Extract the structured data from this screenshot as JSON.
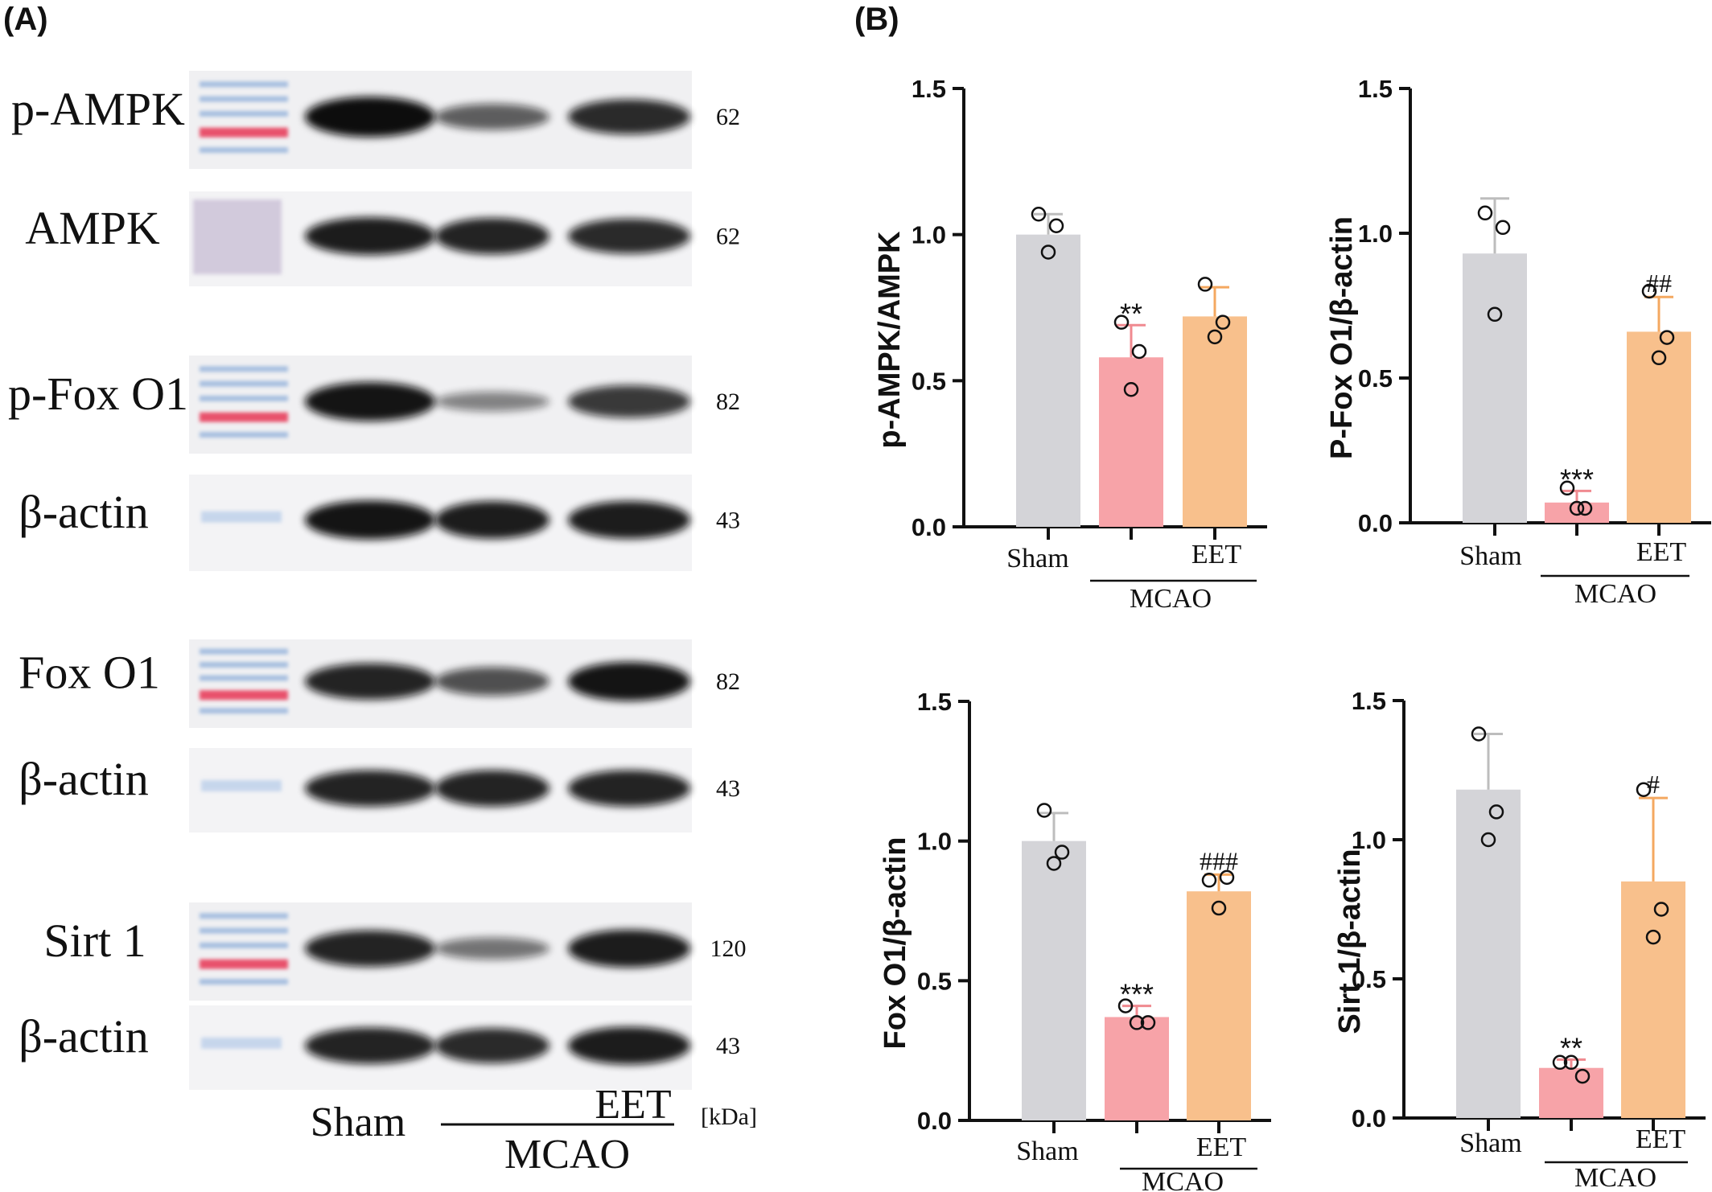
{
  "panel_labels": {
    "a": "(A)",
    "b": "(B)"
  },
  "blot": {
    "rows": [
      {
        "protein": "p-AMPK",
        "kda": "62",
        "bands": [
          1.0,
          0.45,
          0.8
        ]
      },
      {
        "protein": "AMPK",
        "kda": "62",
        "bands": [
          0.9,
          0.85,
          0.8
        ]
      },
      {
        "protein": "p-Fox O1",
        "kda": "82",
        "bands": [
          0.95,
          0.2,
          0.7
        ]
      },
      {
        "protein": "β-actin",
        "kda": "43",
        "bands": [
          0.95,
          0.9,
          0.9
        ]
      },
      {
        "protein": "Fox O1",
        "kda": "82",
        "bands": [
          0.85,
          0.55,
          0.95
        ]
      },
      {
        "protein": "β-actin",
        "kda": "43",
        "bands": [
          0.85,
          0.85,
          0.85
        ]
      },
      {
        "protein": "Sirt 1",
        "kda": "120",
        "bands": [
          0.85,
          0.3,
          0.9
        ]
      },
      {
        "protein": "β-actin",
        "kda": "43",
        "bands": [
          0.85,
          0.8,
          0.9
        ]
      }
    ],
    "x_sham": "Sham",
    "x_eet": "EET",
    "x_mcao": "MCAO",
    "kda_unit": "[kDa]"
  },
  "chart_data": [
    {
      "type": "bar",
      "ylabel": "p-AMPK/AMPK",
      "ylim": [
        0,
        1.5
      ],
      "yticks": [
        "0.0",
        "0.5",
        "1.0",
        "1.5"
      ],
      "categories": [
        "Sham",
        "MCAO",
        "EET"
      ],
      "values": [
        1.0,
        0.58,
        0.72
      ],
      "errors": [
        0.07,
        0.11,
        0.1
      ],
      "points": [
        [
          1.07,
          1.03,
          0.94
        ],
        [
          0.7,
          0.6,
          0.47
        ],
        [
          0.83,
          0.7,
          0.65
        ]
      ],
      "annotations": [
        "",
        "**",
        ""
      ],
      "group_labels": {
        "sham": "Sham",
        "eet": "EET",
        "mcao": "MCAO"
      }
    },
    {
      "type": "bar",
      "ylabel": "P-Fox O1/β-actin",
      "ylim": [
        0,
        1.5
      ],
      "yticks": [
        "0.0",
        "0.5",
        "1.0",
        "1.5"
      ],
      "categories": [
        "Sham",
        "MCAO",
        "EET"
      ],
      "values": [
        0.93,
        0.07,
        0.66
      ],
      "errors": [
        0.19,
        0.04,
        0.12
      ],
      "points": [
        [
          1.07,
          1.02,
          0.72
        ],
        [
          0.12,
          0.05,
          0.05
        ],
        [
          0.8,
          0.64,
          0.57
        ]
      ],
      "annotations": [
        "",
        "***",
        "##"
      ],
      "group_labels": {
        "sham": "Sham",
        "eet": "EET",
        "mcao": "MCAO"
      }
    },
    {
      "type": "bar",
      "ylabel": "Fox O1/β-actin",
      "ylim": [
        0,
        1.5
      ],
      "yticks": [
        "0.0",
        "0.5",
        "1.0",
        "1.5"
      ],
      "categories": [
        "Sham",
        "MCAO",
        "EET"
      ],
      "values": [
        1.0,
        0.37,
        0.82
      ],
      "errors": [
        0.1,
        0.04,
        0.06
      ],
      "points": [
        [
          1.11,
          0.96,
          0.92
        ],
        [
          0.41,
          0.35,
          0.35
        ],
        [
          0.86,
          0.87,
          0.76
        ]
      ],
      "annotations": [
        "",
        "***",
        "###"
      ],
      "group_labels": {
        "sham": "Sham",
        "eet": "EET",
        "mcao": "MCAO"
      }
    },
    {
      "type": "bar",
      "ylabel": "Sirt 1/β-actin",
      "ylim": [
        0,
        1.5
      ],
      "yticks": [
        "0.0",
        "0.5",
        "1.0",
        "1.5"
      ],
      "categories": [
        "Sham",
        "MCAO",
        "EET"
      ],
      "values": [
        1.18,
        0.18,
        0.85
      ],
      "errors": [
        0.2,
        0.03,
        0.3
      ],
      "points": [
        [
          1.38,
          1.1,
          1.0
        ],
        [
          0.2,
          0.2,
          0.15
        ],
        [
          1.18,
          0.75,
          0.65
        ]
      ],
      "annotations": [
        "",
        "**",
        "#"
      ],
      "group_labels": {
        "sham": "Sham",
        "eet": "EET",
        "mcao": "MCAO"
      }
    }
  ],
  "colors": {
    "sham": "#d4d4d8",
    "mcao": "#f7a3a8",
    "eet": "#f8c08c",
    "axis": "#111111",
    "errbar_sham": "#bdbdbd",
    "errbar_mcao": "#f08a90",
    "errbar_eet": "#f4a860"
  }
}
